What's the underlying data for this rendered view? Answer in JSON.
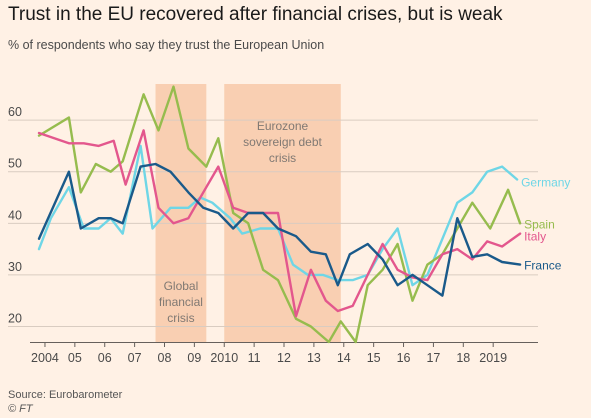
{
  "header": {
    "title": "Trust in the EU recovered after financial crises, but is weak",
    "subtitle": "% of respondents who say they trust the European Union"
  },
  "footer": {
    "source": "Source: Eurobarometer",
    "credit": "© FT"
  },
  "colors": {
    "Germany": "#6fd6e6",
    "Spain": "#96bc4e",
    "Italy": "#e3578d",
    "France": "#1a5a8a",
    "band": "#f9cfb2",
    "grid": "#d9ccc1",
    "background": "#fff1e5"
  },
  "chart_data": {
    "type": "line",
    "ylim": [
      17,
      67
    ],
    "xlim": [
      2003.7,
      2020.5
    ],
    "yticks": [
      20,
      30,
      40,
      50,
      60
    ],
    "xticks": [
      {
        "value": 2004,
        "label": "2004"
      },
      {
        "value": 2005,
        "label": "05"
      },
      {
        "value": 2006,
        "label": "06"
      },
      {
        "value": 2007,
        "label": "07"
      },
      {
        "value": 2008,
        "label": "08"
      },
      {
        "value": 2009,
        "label": "09"
      },
      {
        "value": 2010,
        "label": "2010"
      },
      {
        "value": 2011,
        "label": "11"
      },
      {
        "value": 2012,
        "label": "12"
      },
      {
        "value": 2013,
        "label": "13"
      },
      {
        "value": 2014,
        "label": "14"
      },
      {
        "value": 2015,
        "label": "15"
      },
      {
        "value": 2016,
        "label": "16"
      },
      {
        "value": 2017,
        "label": "17"
      },
      {
        "value": 2018,
        "label": "18"
      },
      {
        "value": 2019,
        "label": "2019"
      }
    ],
    "grid": true,
    "bands": [
      {
        "lines": [
          "Global",
          "financial",
          "crisis"
        ],
        "x0": 2007.7,
        "x1": 2009.4,
        "label_position": "bottom"
      },
      {
        "lines": [
          "Eurozone",
          "sovereign debt",
          "crisis"
        ],
        "x0": 2010.0,
        "x1": 2013.9,
        "label_position": "top"
      }
    ],
    "series": [
      {
        "name": "Germany",
        "x": [
          2003.8,
          2004.2,
          2004.8,
          2005.3,
          2005.8,
          2006.2,
          2006.6,
          2007.2,
          2007.6,
          2008.2,
          2008.8,
          2009.2,
          2009.6,
          2010.2,
          2010.6,
          2011.2,
          2011.8,
          2012.3,
          2012.8,
          2013.3,
          2013.8,
          2014.3,
          2014.8,
          2015.3,
          2015.8,
          2016.3,
          2016.8,
          2017.3,
          2017.8,
          2018.3,
          2018.8,
          2019.3,
          2019.8
        ],
        "y": [
          35,
          41,
          47,
          39,
          39,
          41,
          38,
          55,
          39,
          43,
          43,
          45,
          44,
          41,
          38,
          39,
          39,
          32,
          30,
          30,
          29,
          29,
          30,
          35,
          39,
          28,
          30,
          37,
          44,
          46,
          50,
          51,
          48.5
        ]
      },
      {
        "name": "Spain",
        "x": [
          2003.8,
          2004.8,
          2005.2,
          2005.7,
          2006.2,
          2006.6,
          2007.3,
          2007.8,
          2008.3,
          2008.8,
          2009.4,
          2009.8,
          2010.3,
          2010.8,
          2011.3,
          2011.8,
          2012.4,
          2012.9,
          2013.5,
          2013.9,
          2014.4,
          2014.8,
          2015.3,
          2015.8,
          2016.3,
          2016.8,
          2017.3,
          2017.8,
          2018.3,
          2018.9,
          2019.5,
          2019.9
        ],
        "y": [
          57,
          60.5,
          46,
          51.5,
          50,
          52,
          65,
          58,
          66.5,
          54.5,
          51,
          56.5,
          42,
          40,
          31,
          29,
          21.5,
          20,
          17,
          21,
          17,
          28,
          31,
          36,
          25,
          32,
          34,
          39,
          44,
          39,
          46.5,
          40
        ]
      },
      {
        "name": "Italy",
        "x": [
          2003.8,
          2004.8,
          2005.3,
          2005.8,
          2006.3,
          2006.7,
          2007.3,
          2007.8,
          2008.3,
          2008.8,
          2009.4,
          2009.8,
          2010.3,
          2010.8,
          2011.3,
          2011.8,
          2012.4,
          2012.9,
          2013.4,
          2013.8,
          2014.3,
          2014.8,
          2015.3,
          2015.8,
          2016.3,
          2016.8,
          2017.3,
          2017.8,
          2018.3,
          2018.8,
          2019.3,
          2019.9
        ],
        "y": [
          57.5,
          55.5,
          55.5,
          55,
          56,
          47.5,
          58,
          43,
          40,
          41,
          47,
          51,
          43,
          42,
          42,
          42,
          22,
          31,
          25,
          23,
          24,
          30,
          36,
          31,
          29.5,
          29,
          34,
          35,
          33,
          36.5,
          35.5,
          38
        ]
      },
      {
        "name": "France",
        "x": [
          2003.8,
          2004.8,
          2005.2,
          2005.8,
          2006.2,
          2006.6,
          2007.2,
          2007.7,
          2008.2,
          2008.8,
          2009.3,
          2009.8,
          2010.3,
          2010.8,
          2011.3,
          2011.8,
          2012.4,
          2012.9,
          2013.4,
          2013.8,
          2014.2,
          2014.8,
          2015.3,
          2015.8,
          2016.3,
          2016.8,
          2017.3,
          2017.8,
          2018.3,
          2018.8,
          2019.3,
          2019.9
        ],
        "y": [
          37,
          50,
          39,
          41,
          41,
          40,
          51,
          51.5,
          50,
          46,
          43,
          42,
          39,
          42,
          42,
          39,
          37.5,
          34.5,
          34,
          28,
          34,
          36,
          33,
          28,
          30,
          28,
          26,
          41,
          33.5,
          34,
          32.5,
          32
        ]
      }
    ]
  }
}
